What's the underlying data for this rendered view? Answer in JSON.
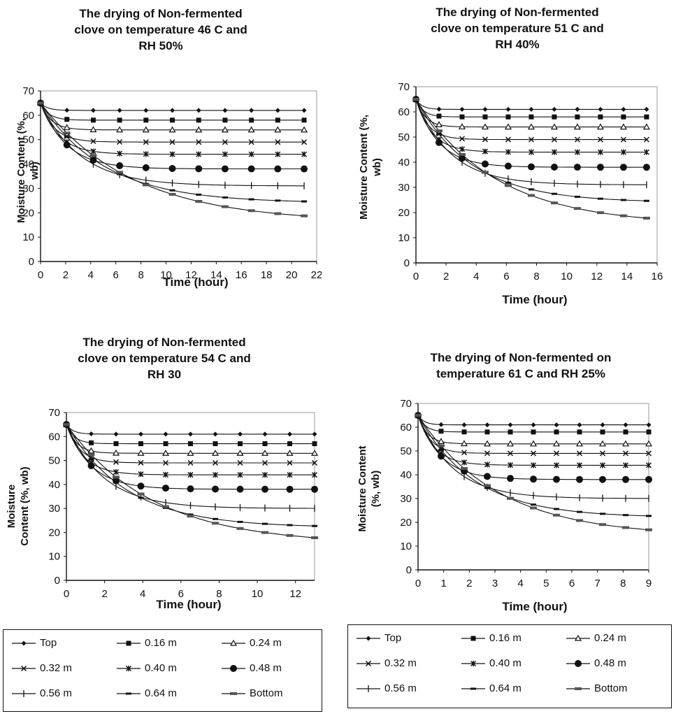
{
  "chart_data": [
    {
      "type": "line",
      "title": "The drying of Non-fermented clove on temperature 46 C and RH 50%",
      "title_lines": [
        "The drying of Non-fermented",
        "clove on temperature 46 C and",
        "RH 50%"
      ],
      "xlabel": "Time (hour)",
      "ylabel": "Moisture Content (%, wb)",
      "ylabel_lines": [
        "Moisture Content (%,",
        "wb)"
      ],
      "xlim": [
        0,
        22
      ],
      "ylim": [
        0,
        70
      ],
      "xticks": [
        0,
        2,
        4,
        6,
        8,
        10,
        12,
        14,
        16,
        18,
        20,
        22
      ],
      "yticks": [
        0,
        10,
        20,
        30,
        40,
        50,
        60,
        70
      ],
      "grid": false,
      "initial": 65,
      "x_end": 21,
      "series": [
        {
          "name": "Top",
          "marker": "diamond",
          "final": 62
        },
        {
          "name": "0.16 m",
          "marker": "square",
          "final": 58
        },
        {
          "name": "0.24 m",
          "marker": "triangle",
          "final": 54
        },
        {
          "name": "0.32 m",
          "marker": "x",
          "final": 49
        },
        {
          "name": "0.40 m",
          "marker": "star",
          "final": 44
        },
        {
          "name": "0.48 m",
          "marker": "circle",
          "final": 38
        },
        {
          "name": "0.56 m",
          "marker": "plus",
          "final": 31
        },
        {
          "name": "0.64 m",
          "marker": "dash",
          "final": 24
        },
        {
          "name": "Bottom",
          "marker": "bar",
          "final": 16
        }
      ]
    },
    {
      "type": "line",
      "title": "The drying of Non-fermented clove on temperature 51 C and RH 40%",
      "title_lines": [
        "The drying of Non-fermented",
        "clove on temperature 51 C and",
        "RH 40%"
      ],
      "xlabel": "Time (hour)",
      "ylabel": "Moisture Content (%, wb)",
      "ylabel_lines": [
        "Moisture Content (%,",
        "wb)"
      ],
      "xlim": [
        0,
        16
      ],
      "ylim": [
        0,
        70
      ],
      "xticks": [
        0,
        2,
        4,
        6,
        8,
        10,
        12,
        14,
        16
      ],
      "yticks": [
        0,
        10,
        20,
        30,
        40,
        50,
        60,
        70
      ],
      "grid": false,
      "initial": 65,
      "x_end": 15.3,
      "series": [
        {
          "name": "Top",
          "marker": "diamond",
          "final": 61
        },
        {
          "name": "0.16 m",
          "marker": "square",
          "final": 58
        },
        {
          "name": "0.24 m",
          "marker": "triangle",
          "final": 54
        },
        {
          "name": "0.32 m",
          "marker": "x",
          "final": 49
        },
        {
          "name": "0.40 m",
          "marker": "star",
          "final": 44
        },
        {
          "name": "0.48 m",
          "marker": "circle",
          "final": 38
        },
        {
          "name": "0.56 m",
          "marker": "plus",
          "final": 31
        },
        {
          "name": "0.64 m",
          "marker": "dash",
          "final": 24
        },
        {
          "name": "Bottom",
          "marker": "bar",
          "final": 15
        }
      ]
    },
    {
      "type": "line",
      "title": "The drying of Non-fermented clove on temperature 54 C and RH 30",
      "title_lines": [
        "The drying of Non-fermented",
        "clove on temperature 54 C and",
        "RH 30"
      ],
      "xlabel": "Time (hour)",
      "ylabel": "Moisture Content (%, wb)",
      "ylabel_lines": [
        "Moisture",
        "Content (%, wb)"
      ],
      "xlim": [
        0,
        13
      ],
      "ylim": [
        0,
        70
      ],
      "xticks": [
        0,
        2,
        4,
        6,
        8,
        10,
        12
      ],
      "yticks": [
        0,
        10,
        20,
        30,
        40,
        50,
        60,
        70
      ],
      "grid": false,
      "initial": 65,
      "x_end": 13,
      "series": [
        {
          "name": "Top",
          "marker": "diamond",
          "final": 61
        },
        {
          "name": "0.16 m",
          "marker": "square",
          "final": 57
        },
        {
          "name": "0.24 m",
          "marker": "triangle",
          "final": 53
        },
        {
          "name": "0.32 m",
          "marker": "x",
          "final": 49
        },
        {
          "name": "0.40 m",
          "marker": "star",
          "final": 44
        },
        {
          "name": "0.48 m",
          "marker": "circle",
          "final": 38
        },
        {
          "name": "0.56 m",
          "marker": "plus",
          "final": 30
        },
        {
          "name": "0.64 m",
          "marker": "dash",
          "final": 22
        },
        {
          "name": "Bottom",
          "marker": "bar",
          "final": 15
        }
      ]
    },
    {
      "type": "line",
      "title": "The drying of Non-fermented on temperature 61 C and RH 25%",
      "title_lines": [
        "The drying of Non-fermented on",
        "temperature 61 C and RH 25%"
      ],
      "xlabel": "Time (hour)",
      "ylabel": "Moisture Content (%, wb)",
      "ylabel_lines": [
        "Moisture Content",
        "(%, wb)"
      ],
      "xlim": [
        0,
        9
      ],
      "ylim": [
        0,
        70
      ],
      "xticks": [
        0,
        1,
        2,
        3,
        4,
        5,
        6,
        7,
        8,
        9
      ],
      "yticks": [
        0,
        10,
        20,
        30,
        40,
        50,
        60,
        70
      ],
      "grid": false,
      "initial": 65,
      "x_end": 9,
      "series": [
        {
          "name": "Top",
          "marker": "diamond",
          "final": 61
        },
        {
          "name": "0.16 m",
          "marker": "square",
          "final": 58
        },
        {
          "name": "0.24 m",
          "marker": "triangle",
          "final": 53
        },
        {
          "name": "0.32 m",
          "marker": "x",
          "final": 49
        },
        {
          "name": "0.40 m",
          "marker": "star",
          "final": 44
        },
        {
          "name": "0.48 m",
          "marker": "circle",
          "final": 38
        },
        {
          "name": "0.56 m",
          "marker": "plus",
          "final": 30
        },
        {
          "name": "0.64 m",
          "marker": "dash",
          "final": 22
        },
        {
          "name": "Bottom",
          "marker": "bar",
          "final": 14
        }
      ]
    }
  ],
  "legends": [
    {
      "items": [
        "Top",
        "0.16 m",
        "0.24 m",
        "0.32 m",
        "0.40 m",
        "0.48 m",
        "0.56 m",
        "0.64 m",
        "Bottom"
      ]
    },
    {
      "items": [
        "Top",
        "0.16 m",
        "0.24 m",
        "0.32 m",
        "0.40 m",
        "0.48 m",
        "0.56 m",
        "0.64 m",
        "Bottom"
      ]
    }
  ],
  "series_markers": [
    "diamond",
    "square",
    "triangle",
    "x",
    "star",
    "circle",
    "plus",
    "dash",
    "bar"
  ]
}
